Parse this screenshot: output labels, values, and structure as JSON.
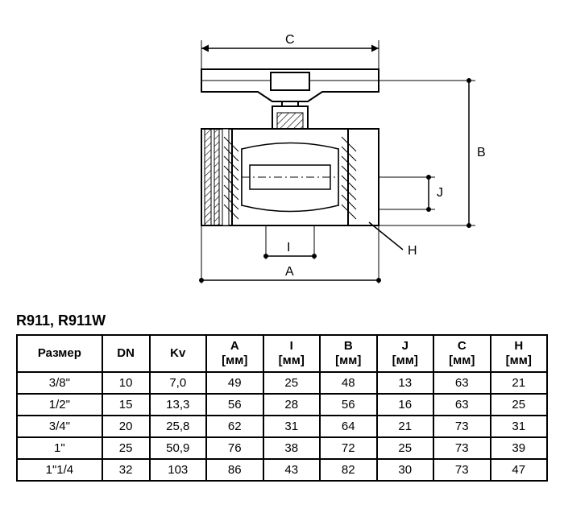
{
  "title": "R911, R911W",
  "diagram": {
    "stroke": "#000000",
    "stroke_width": 2,
    "bg": "#ffffff",
    "labels": {
      "A": "A",
      "B": "B",
      "C": "C",
      "H": "H",
      "I": "I",
      "J": "J"
    }
  },
  "table": {
    "columns": [
      {
        "key": "size",
        "header": "Размер",
        "unit": ""
      },
      {
        "key": "dn",
        "header": "DN",
        "unit": ""
      },
      {
        "key": "kv",
        "header": "Kv",
        "unit": ""
      },
      {
        "key": "a",
        "header": "A",
        "unit": "[мм]"
      },
      {
        "key": "i",
        "header": "I",
        "unit": "[мм]"
      },
      {
        "key": "b",
        "header": "B",
        "unit": "[мм]"
      },
      {
        "key": "j",
        "header": "J",
        "unit": "[мм]"
      },
      {
        "key": "c",
        "header": "C",
        "unit": "[мм]"
      },
      {
        "key": "h",
        "header": "H",
        "unit": "[мм]"
      }
    ],
    "rows": [
      {
        "size": "3/8\"",
        "dn": "10",
        "kv": "7,0",
        "a": "49",
        "i": "25",
        "b": "48",
        "j": "13",
        "c": "63",
        "h": "21"
      },
      {
        "size": "1/2\"",
        "dn": "15",
        "kv": "13,3",
        "a": "56",
        "i": "28",
        "b": "56",
        "j": "16",
        "c": "63",
        "h": "25"
      },
      {
        "size": "3/4\"",
        "dn": "20",
        "kv": "25,8",
        "a": "62",
        "i": "31",
        "b": "64",
        "j": "21",
        "c": "73",
        "h": "31"
      },
      {
        "size": "1\"",
        "dn": "25",
        "kv": "50,9",
        "a": "76",
        "i": "38",
        "b": "72",
        "j": "25",
        "c": "73",
        "h": "39"
      },
      {
        "size": "1\"1/4",
        "dn": "32",
        "kv": "103",
        "a": "86",
        "i": "43",
        "b": "82",
        "j": "30",
        "c": "73",
        "h": "47"
      }
    ],
    "col_widths": [
      "90",
      "50",
      "60",
      "60",
      "60",
      "60",
      "60",
      "60",
      "60"
    ]
  }
}
